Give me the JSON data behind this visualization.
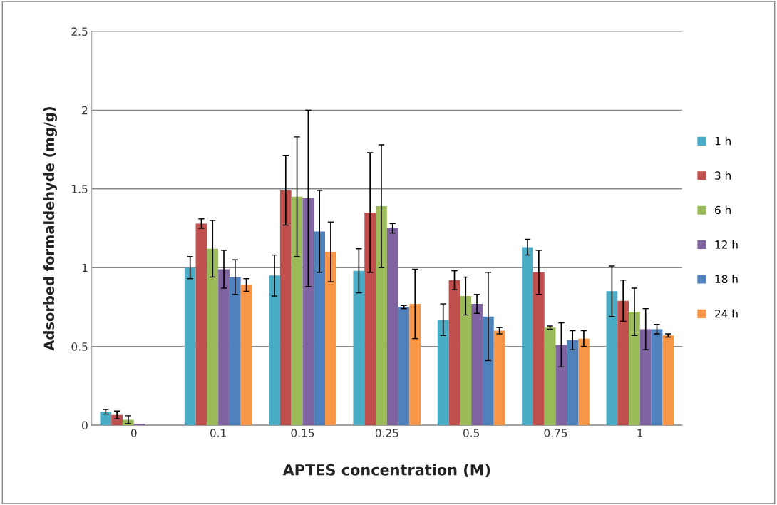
{
  "chart_data": {
    "type": "bar",
    "xlabel": "APTES concentration (M)",
    "ylabel": "Adsorbed formaldehyde (mg/g)",
    "categories": [
      "0",
      "0.1",
      "0.15",
      "0.25",
      "0.5",
      "0.75",
      "1"
    ],
    "ylim": [
      0,
      2.5
    ],
    "yticks": [
      0,
      0.5,
      1,
      1.5,
      2,
      2.5
    ],
    "grid": "y",
    "legend": "right",
    "series": [
      {
        "name": "1 h",
        "color": "#4bacc6",
        "values": [
          0.085,
          1.0,
          0.95,
          0.98,
          0.67,
          1.13,
          0.85
        ],
        "errors": [
          0.015,
          0.07,
          0.13,
          0.14,
          0.1,
          0.05,
          0.16
        ]
      },
      {
        "name": "3 h",
        "color": "#c0504d",
        "values": [
          0.065,
          1.28,
          1.49,
          1.35,
          0.92,
          0.97,
          0.79
        ],
        "errors": [
          0.025,
          0.03,
          0.22,
          0.38,
          0.06,
          0.14,
          0.13
        ]
      },
      {
        "name": "6 h",
        "color": "#9bbb59",
        "values": [
          0.035,
          1.12,
          1.45,
          1.39,
          0.82,
          0.62,
          0.72
        ],
        "errors": [
          0.025,
          0.18,
          0.38,
          0.39,
          0.12,
          0.01,
          0.15
        ]
      },
      {
        "name": "12 h",
        "color": "#8064a2",
        "values": [
          0.01,
          0.99,
          1.44,
          1.25,
          0.77,
          0.51,
          0.61
        ],
        "errors": [
          null,
          0.12,
          0.56,
          0.03,
          0.06,
          0.14,
          0.13
        ]
      },
      {
        "name": "18 h",
        "color": "#4f81bd",
        "values": [
          0,
          0.94,
          1.23,
          0.75,
          0.69,
          0.54,
          0.61
        ],
        "errors": [
          null,
          0.11,
          0.26,
          0.01,
          0.28,
          0.06,
          0.03
        ]
      },
      {
        "name": "24 h",
        "color": "#f79646",
        "values": [
          0,
          0.89,
          1.1,
          0.77,
          0.6,
          0.55,
          0.57
        ],
        "errors": [
          null,
          0.04,
          0.19,
          0.22,
          0.02,
          0.05,
          0.01
        ]
      }
    ]
  }
}
